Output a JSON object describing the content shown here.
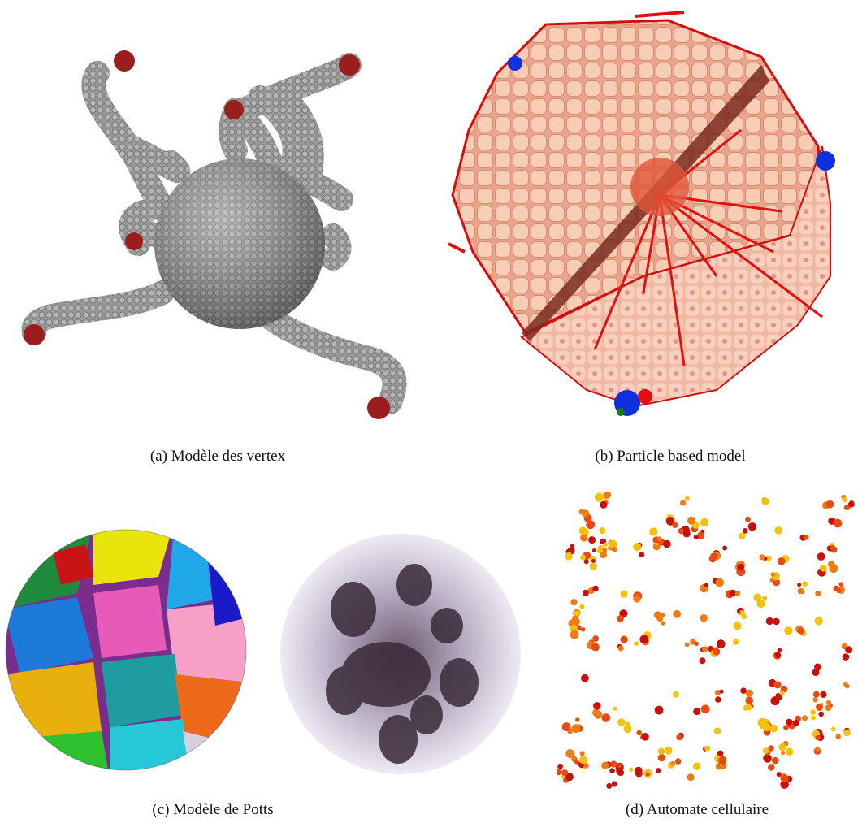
{
  "figure": {
    "panels": [
      {
        "id": "a",
        "caption": "(a)  Modèle des vertex"
      },
      {
        "id": "b",
        "caption": "(b)  Particle based model"
      },
      {
        "id": "c",
        "caption": "(c)  Modèle de Potts"
      },
      {
        "id": "d",
        "caption": "(d)  Automate cellulaire"
      }
    ]
  },
  "colors": {
    "mesh_gray": "#8f8f8f",
    "tip_red": "#9a1e1e",
    "particle_pink": "#f6c2aa",
    "vessel_red": "#e01010",
    "marker_blue": "#1030e0",
    "automaton_red": "#c8100c",
    "automaton_orange": "#f07a14",
    "automaton_yellow": "#f4c20c"
  }
}
